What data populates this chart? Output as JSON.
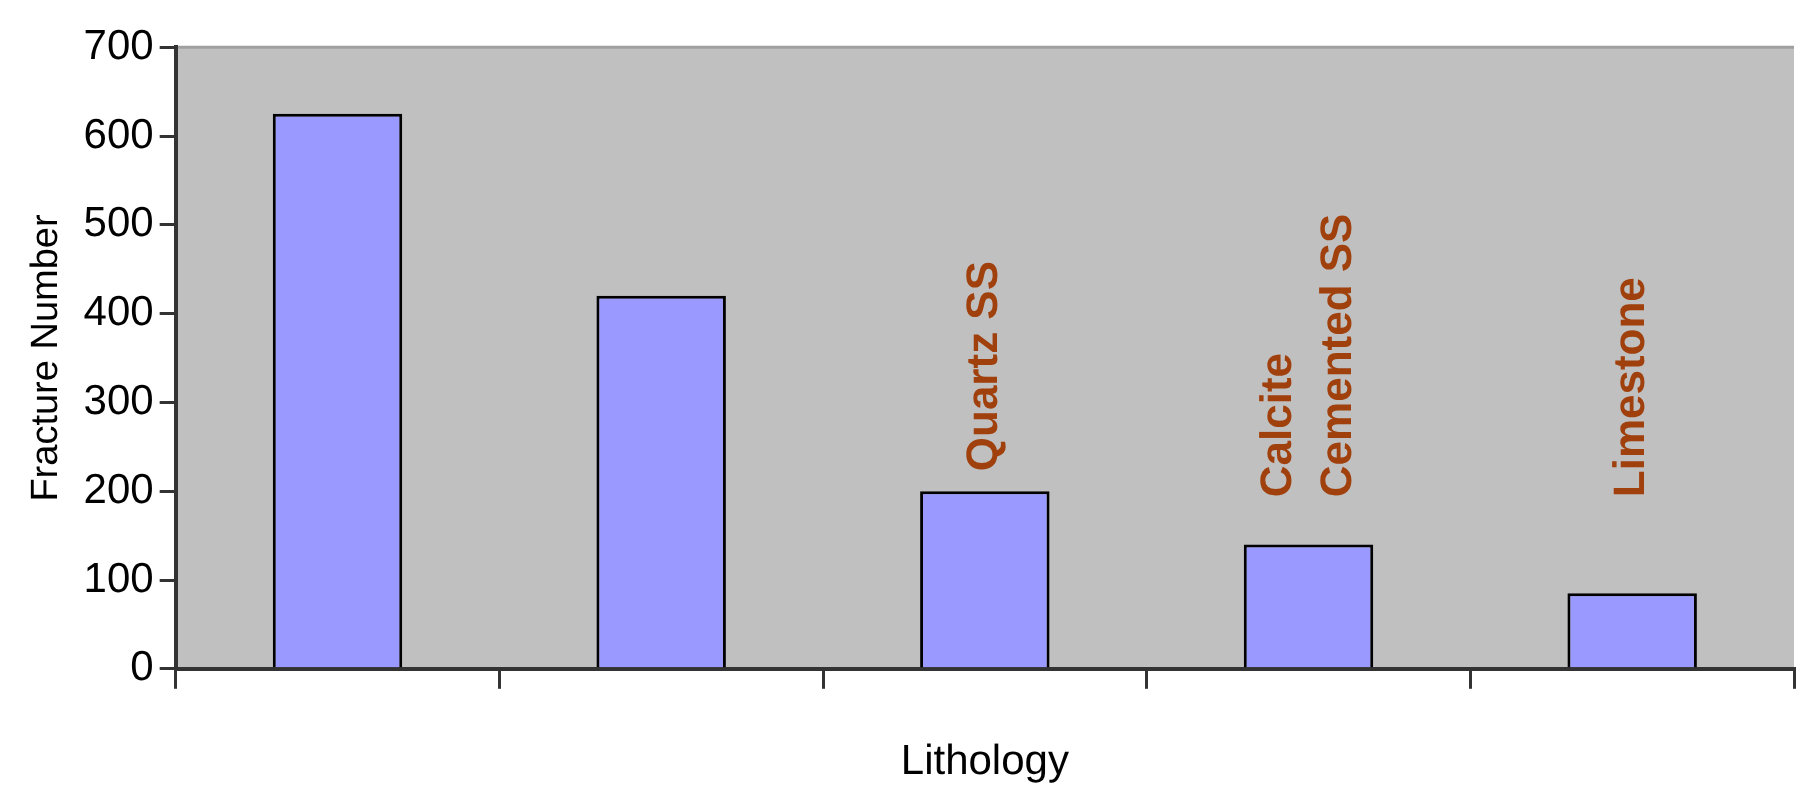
{
  "chart_data": {
    "type": "bar",
    "xlabel": "Lithology",
    "ylabel": "Fracture Number",
    "categories": [
      null,
      null,
      "Quartz SS",
      "Calcite Cemented SS",
      "Limestone"
    ],
    "values": [
      625,
      420,
      200,
      140,
      85
    ],
    "color": "#9999ff",
    "ylim": [
      0,
      700
    ],
    "yticks": [
      0,
      100,
      200,
      300,
      400,
      500,
      600,
      700
    ],
    "grid": false,
    "legend": false
  }
}
